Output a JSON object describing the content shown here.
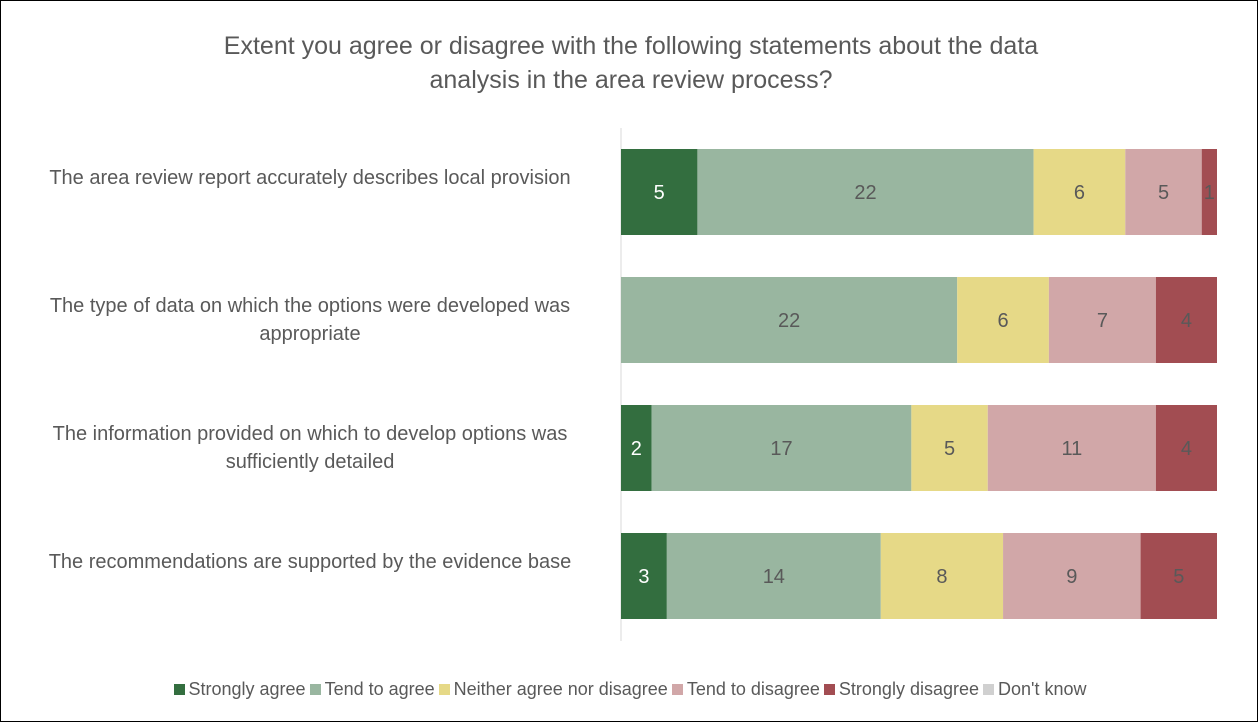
{
  "chart_data": {
    "type": "bar",
    "orientation": "horizontal",
    "stacked": true,
    "title": "Extent you agree or disagree with the following statements about the data\nanalysis in the area review process?",
    "xlabel": "",
    "ylabel": "",
    "categories": [
      "The area review report accurately describes local provision",
      "The type of data on which the options were developed was appropriate",
      "The information provided on which to develop options was sufficiently detailed",
      "The recommendations are supported by the evidence base"
    ],
    "series": [
      {
        "name": "Strongly agree",
        "color": "#336e3f",
        "label_color": "#ffffff",
        "values": [
          5,
          0,
          2,
          3
        ]
      },
      {
        "name": "Tend to agree",
        "color": "#99b6a0",
        "label_color": "#595959",
        "values": [
          22,
          22,
          17,
          14
        ]
      },
      {
        "name": "Neither agree nor disagree",
        "color": "#e6d987",
        "label_color": "#595959",
        "values": [
          6,
          6,
          5,
          8
        ]
      },
      {
        "name": "Tend to disagree",
        "color": "#d1a7a8",
        "label_color": "#595959",
        "values": [
          5,
          7,
          11,
          9
        ]
      },
      {
        "name": "Strongly disagree",
        "color": "#a24d52",
        "label_color": "#595959",
        "values": [
          1,
          4,
          4,
          5
        ]
      },
      {
        "name": "Don't know",
        "color": "#d0d0d0",
        "label_color": "#595959",
        "values": [
          0,
          0,
          0,
          0
        ]
      }
    ],
    "grid": false,
    "legend_position": "bottom"
  }
}
